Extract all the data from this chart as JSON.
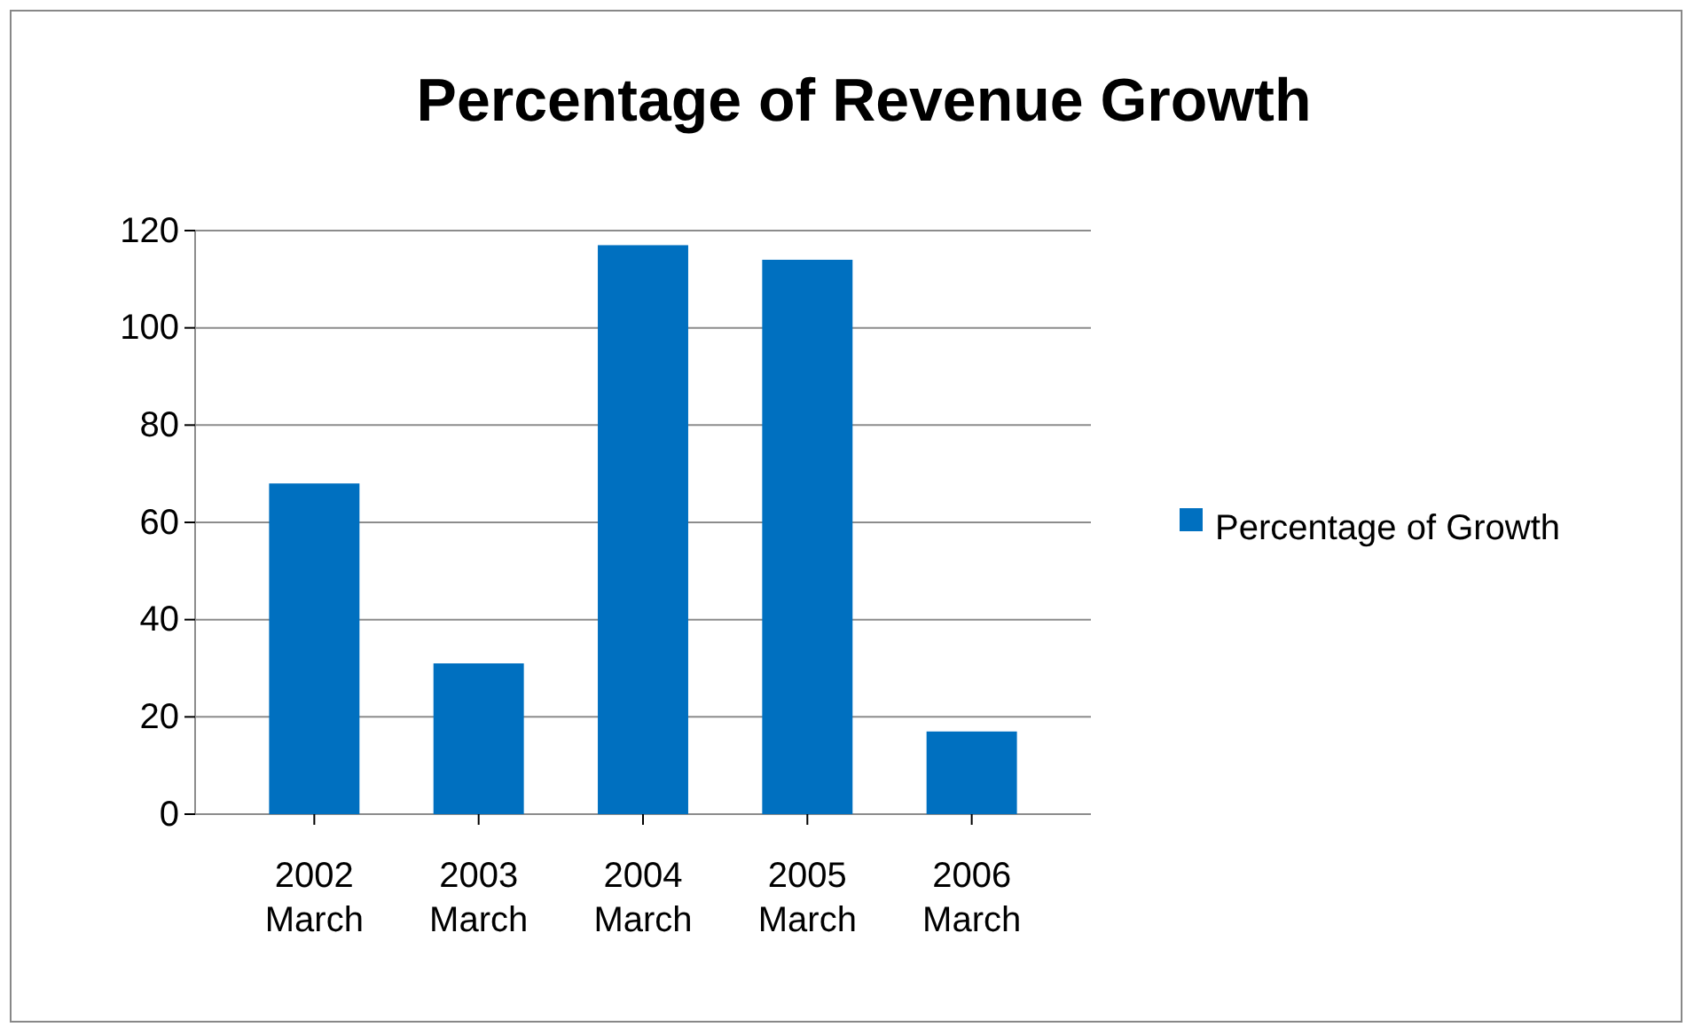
{
  "chart_data": {
    "type": "bar",
    "title": "Percentage of Revenue Growth",
    "categories": [
      "2002 March",
      "2003 March",
      "2004 March",
      "2005 March",
      "2006 March"
    ],
    "series": [
      {
        "name": "Percentage of Growth",
        "color": "#0070c0",
        "values": [
          68,
          31,
          117,
          114,
          17
        ]
      }
    ],
    "ylim": [
      0,
      120
    ],
    "yticks": [
      0,
      20,
      40,
      60,
      80,
      100,
      120
    ],
    "grid": "y",
    "legend": "right"
  }
}
